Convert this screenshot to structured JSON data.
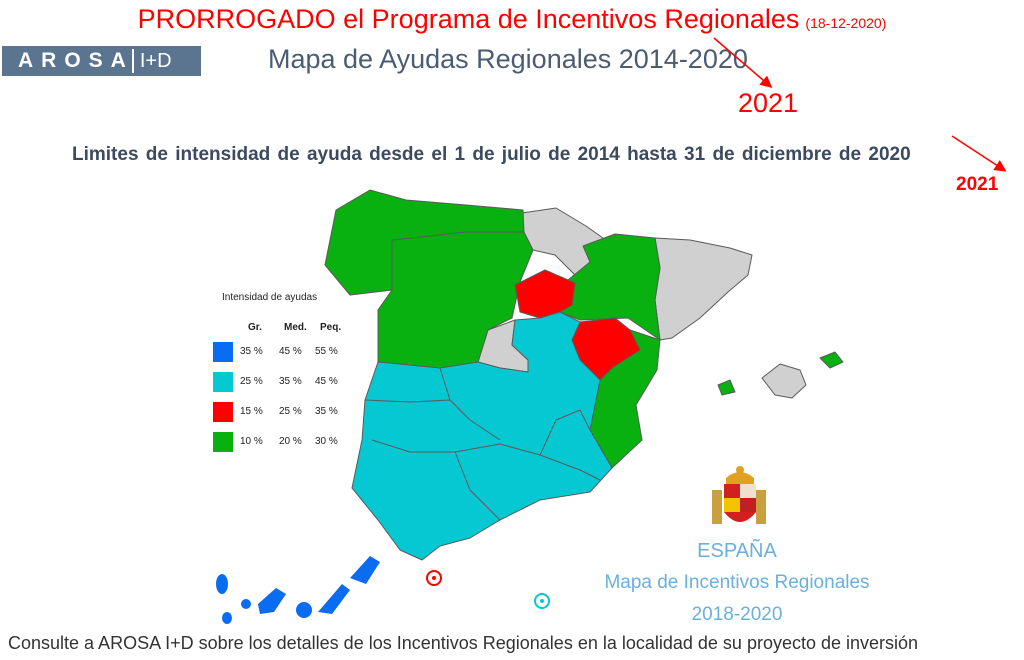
{
  "banner": {
    "text": "PRORROGADO el Programa de Incentivos Regionales",
    "date": "(18-12-2020)"
  },
  "logo": {
    "name": "AROSA",
    "suffix": "I+D"
  },
  "title": {
    "text": "Mapa de Ayudas Regionales 2014-2020",
    "correction": "2021"
  },
  "subtitle": {
    "text": "Limites de intensidad de ayuda desde el 1 de julio de 2014 hasta 31 de diciembre de 2020",
    "correction": "2021"
  },
  "legend": {
    "title": "Intensidad de ayudas",
    "headers": [
      "Gr.",
      "Med.",
      "Peq."
    ],
    "rows": [
      {
        "color": "#0a6cf0",
        "gr": "35 %",
        "med": "45 %",
        "peq": "55 %"
      },
      {
        "color": "#05c8d2",
        "gr": "25 %",
        "med": "35 %",
        "peq": "45 %"
      },
      {
        "color": "#ff0000",
        "gr": "15 %",
        "med": "25 %",
        "peq": "35 %"
      },
      {
        "color": "#08b010",
        "gr": "10 %",
        "med": "20 %",
        "peq": "30 %"
      }
    ]
  },
  "map": {
    "colors": {
      "no_aid": "#d0d0d0",
      "border": "#5a5a5a"
    }
  },
  "seal": {
    "country": "ESPAÑA",
    "line1": "Mapa de Incentivos Regionales",
    "line2": "2018-2020"
  },
  "footer": {
    "text": "Consulte a AROSA I+D sobre los detalles de los Incentivos Regionales en la localidad de su proyecto de inversión"
  }
}
